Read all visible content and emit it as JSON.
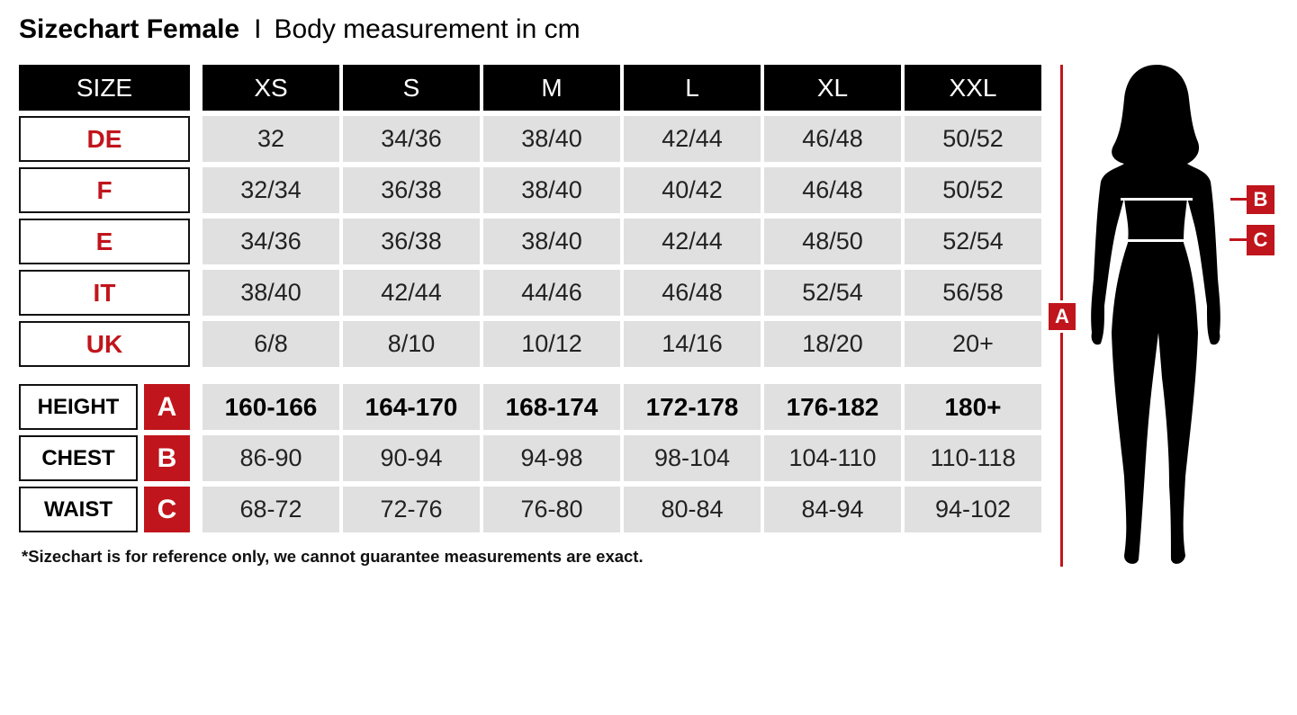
{
  "title": {
    "bold": "Sizechart Female",
    "separator": "I",
    "subtitle": "Body measurement in cm"
  },
  "table": {
    "corner": "SIZE",
    "sizes": [
      "XS",
      "S",
      "M",
      "L",
      "XL",
      "XXL"
    ],
    "conversion_rows": [
      {
        "label": "DE",
        "values": [
          "32",
          "34/36",
          "38/40",
          "42/44",
          "46/48",
          "50/52"
        ]
      },
      {
        "label": "F",
        "values": [
          "32/34",
          "36/38",
          "38/40",
          "40/42",
          "46/48",
          "50/52"
        ]
      },
      {
        "label": "E",
        "values": [
          "34/36",
          "36/38",
          "38/40",
          "42/44",
          "48/50",
          "52/54"
        ]
      },
      {
        "label": "IT",
        "values": [
          "38/40",
          "42/44",
          "44/46",
          "46/48",
          "52/54",
          "56/58"
        ]
      },
      {
        "label": "UK",
        "values": [
          "6/8",
          "8/10",
          "10/12",
          "14/16",
          "18/20",
          "20+"
        ]
      }
    ],
    "measurement_rows": [
      {
        "label": "HEIGHT",
        "marker": "A",
        "bold": true,
        "values": [
          "160-166",
          "164-170",
          "168-174",
          "172-178",
          "176-182",
          "180+"
        ]
      },
      {
        "label": "CHEST",
        "marker": "B",
        "bold": false,
        "values": [
          "86-90",
          "90-94",
          "94-98",
          "98-104",
          "104-110",
          "110-118"
        ]
      },
      {
        "label": "WAIST",
        "marker": "C",
        "bold": false,
        "values": [
          "68-72",
          "72-76",
          "76-80",
          "80-84",
          "84-94",
          "94-102"
        ]
      }
    ]
  },
  "footnote": "*Sizechart is for reference only, we cannot guarantee measurements are exact.",
  "figure": {
    "markers": {
      "height": "A",
      "chest": "B",
      "waist": "C"
    },
    "icon": "female-silhouette-icon"
  },
  "colors": {
    "accent": "#c0151c",
    "header": "#000000",
    "cell": "#e0e0e0"
  }
}
